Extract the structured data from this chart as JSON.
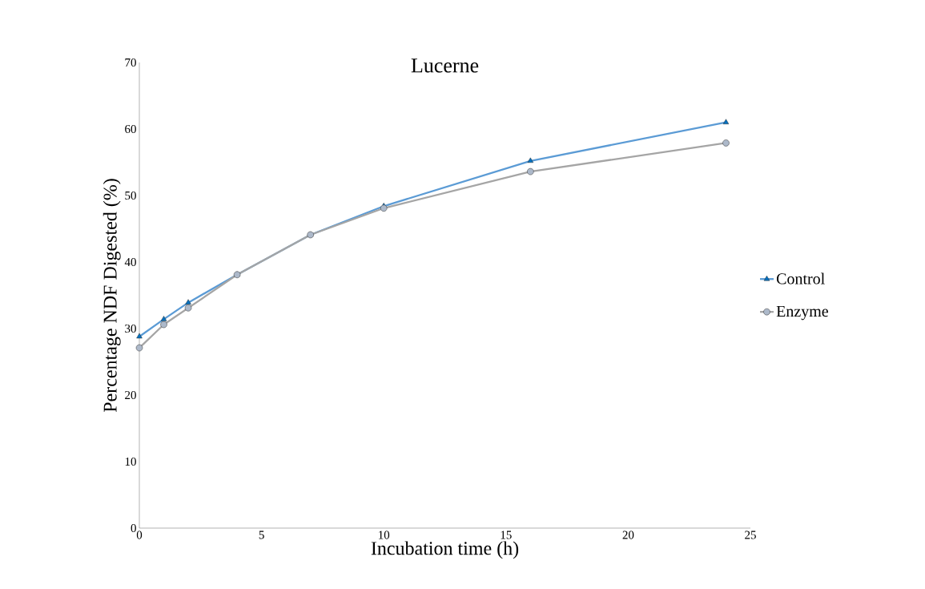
{
  "chart_data": {
    "type": "line",
    "title": "Lucerne",
    "xlabel": "Incubation time (h)",
    "ylabel": "Percentage NDF Digested (%)",
    "x": [
      0,
      1,
      2,
      4,
      7,
      10,
      16,
      24
    ],
    "series": [
      {
        "name": "Control",
        "color": "#5b9bd5",
        "marker": "triangle",
        "values": [
          28.8,
          31.4,
          33.9,
          38.1,
          44.1,
          48.4,
          55.2,
          61.0
        ]
      },
      {
        "name": "Enzyme",
        "color": "#a5a5a5",
        "marker": "circle",
        "values": [
          27.1,
          30.6,
          33.1,
          38.1,
          44.1,
          48.1,
          53.6,
          57.9
        ]
      }
    ],
    "xlim": [
      0,
      25
    ],
    "xticks": [
      0,
      5,
      10,
      15,
      20,
      25
    ],
    "ylim": [
      0,
      70
    ],
    "yticks": [
      0,
      10,
      20,
      30,
      40,
      50,
      60,
      70
    ],
    "grid": false,
    "legend": "right"
  }
}
